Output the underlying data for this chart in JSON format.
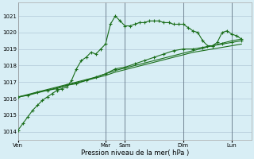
{
  "title": "",
  "xlabel": "Pression niveau de la mer( hPa )",
  "bg_color": "#d8eef5",
  "grid_color": "#b0c8d8",
  "line_color": "#1a6e1a",
  "ylim": [
    1013.5,
    1021.8
  ],
  "yticks": [
    1014,
    1015,
    1016,
    1017,
    1018,
    1019,
    1020,
    1021
  ],
  "day_labels": [
    "Ven",
    "Mar",
    "Sam",
    "Dim",
    "Lun"
  ],
  "day_positions": [
    0,
    9,
    11,
    17,
    22
  ],
  "xmax": 24,
  "series1_x": [
    0,
    0.5,
    1,
    1.5,
    2,
    2.5,
    3,
    3.5,
    4,
    4.5,
    5,
    5.5,
    6,
    6.5,
    7,
    7.5,
    8,
    8.5,
    9,
    9.5,
    10,
    10.5,
    11,
    11.5,
    12,
    12.5,
    13,
    13.5,
    14,
    14.5,
    15,
    15.5,
    16,
    16.5,
    17,
    17.5,
    18,
    18.5,
    19,
    19.5,
    20,
    20.5,
    21,
    21.5,
    22,
    22.5,
    23
  ],
  "series1_y": [
    1014.1,
    1014.5,
    1014.9,
    1015.3,
    1015.6,
    1015.9,
    1016.1,
    1016.3,
    1016.5,
    1016.6,
    1016.7,
    1017.1,
    1017.8,
    1018.3,
    1018.5,
    1018.8,
    1018.7,
    1019.0,
    1019.3,
    1020.5,
    1021.0,
    1020.7,
    1020.4,
    1020.4,
    1020.5,
    1020.6,
    1020.6,
    1020.7,
    1020.7,
    1020.7,
    1020.6,
    1020.6,
    1020.5,
    1020.5,
    1020.5,
    1020.3,
    1020.1,
    1020.0,
    1019.5,
    1019.2,
    1019.2,
    1019.4,
    1020.0,
    1020.1,
    1019.9,
    1019.8,
    1019.6
  ],
  "series2_x": [
    0,
    1,
    2,
    3,
    4,
    5,
    6,
    7,
    8,
    9,
    10,
    11,
    12,
    13,
    14,
    15,
    16,
    17,
    18,
    19,
    20,
    21,
    22,
    23
  ],
  "series2_y": [
    1016.1,
    1016.2,
    1016.4,
    1016.5,
    1016.6,
    1016.8,
    1016.9,
    1017.1,
    1017.3,
    1017.5,
    1017.8,
    1017.9,
    1018.1,
    1018.3,
    1018.5,
    1018.7,
    1018.9,
    1019.0,
    1019.0,
    1019.1,
    1019.2,
    1019.3,
    1019.4,
    1019.5
  ],
  "series3_x": [
    0,
    1,
    2,
    3,
    4,
    5,
    6,
    7,
    8,
    9,
    10,
    11,
    12,
    13,
    14,
    15,
    16,
    17,
    18,
    19,
    20,
    21,
    22,
    23
  ],
  "series3_y": [
    1016.1,
    1016.2,
    1016.35,
    1016.5,
    1016.65,
    1016.8,
    1016.95,
    1017.1,
    1017.25,
    1017.4,
    1017.6,
    1017.75,
    1017.9,
    1018.05,
    1018.2,
    1018.35,
    1018.5,
    1018.65,
    1018.8,
    1018.9,
    1019.0,
    1019.1,
    1019.2,
    1019.3
  ],
  "series4_x": [
    0,
    2,
    4,
    6,
    8,
    10,
    12,
    14,
    16,
    18,
    20,
    22,
    23
  ],
  "series4_y": [
    1016.1,
    1016.4,
    1016.7,
    1017.0,
    1017.3,
    1017.7,
    1018.0,
    1018.3,
    1018.6,
    1018.9,
    1019.2,
    1019.5,
    1019.6
  ]
}
